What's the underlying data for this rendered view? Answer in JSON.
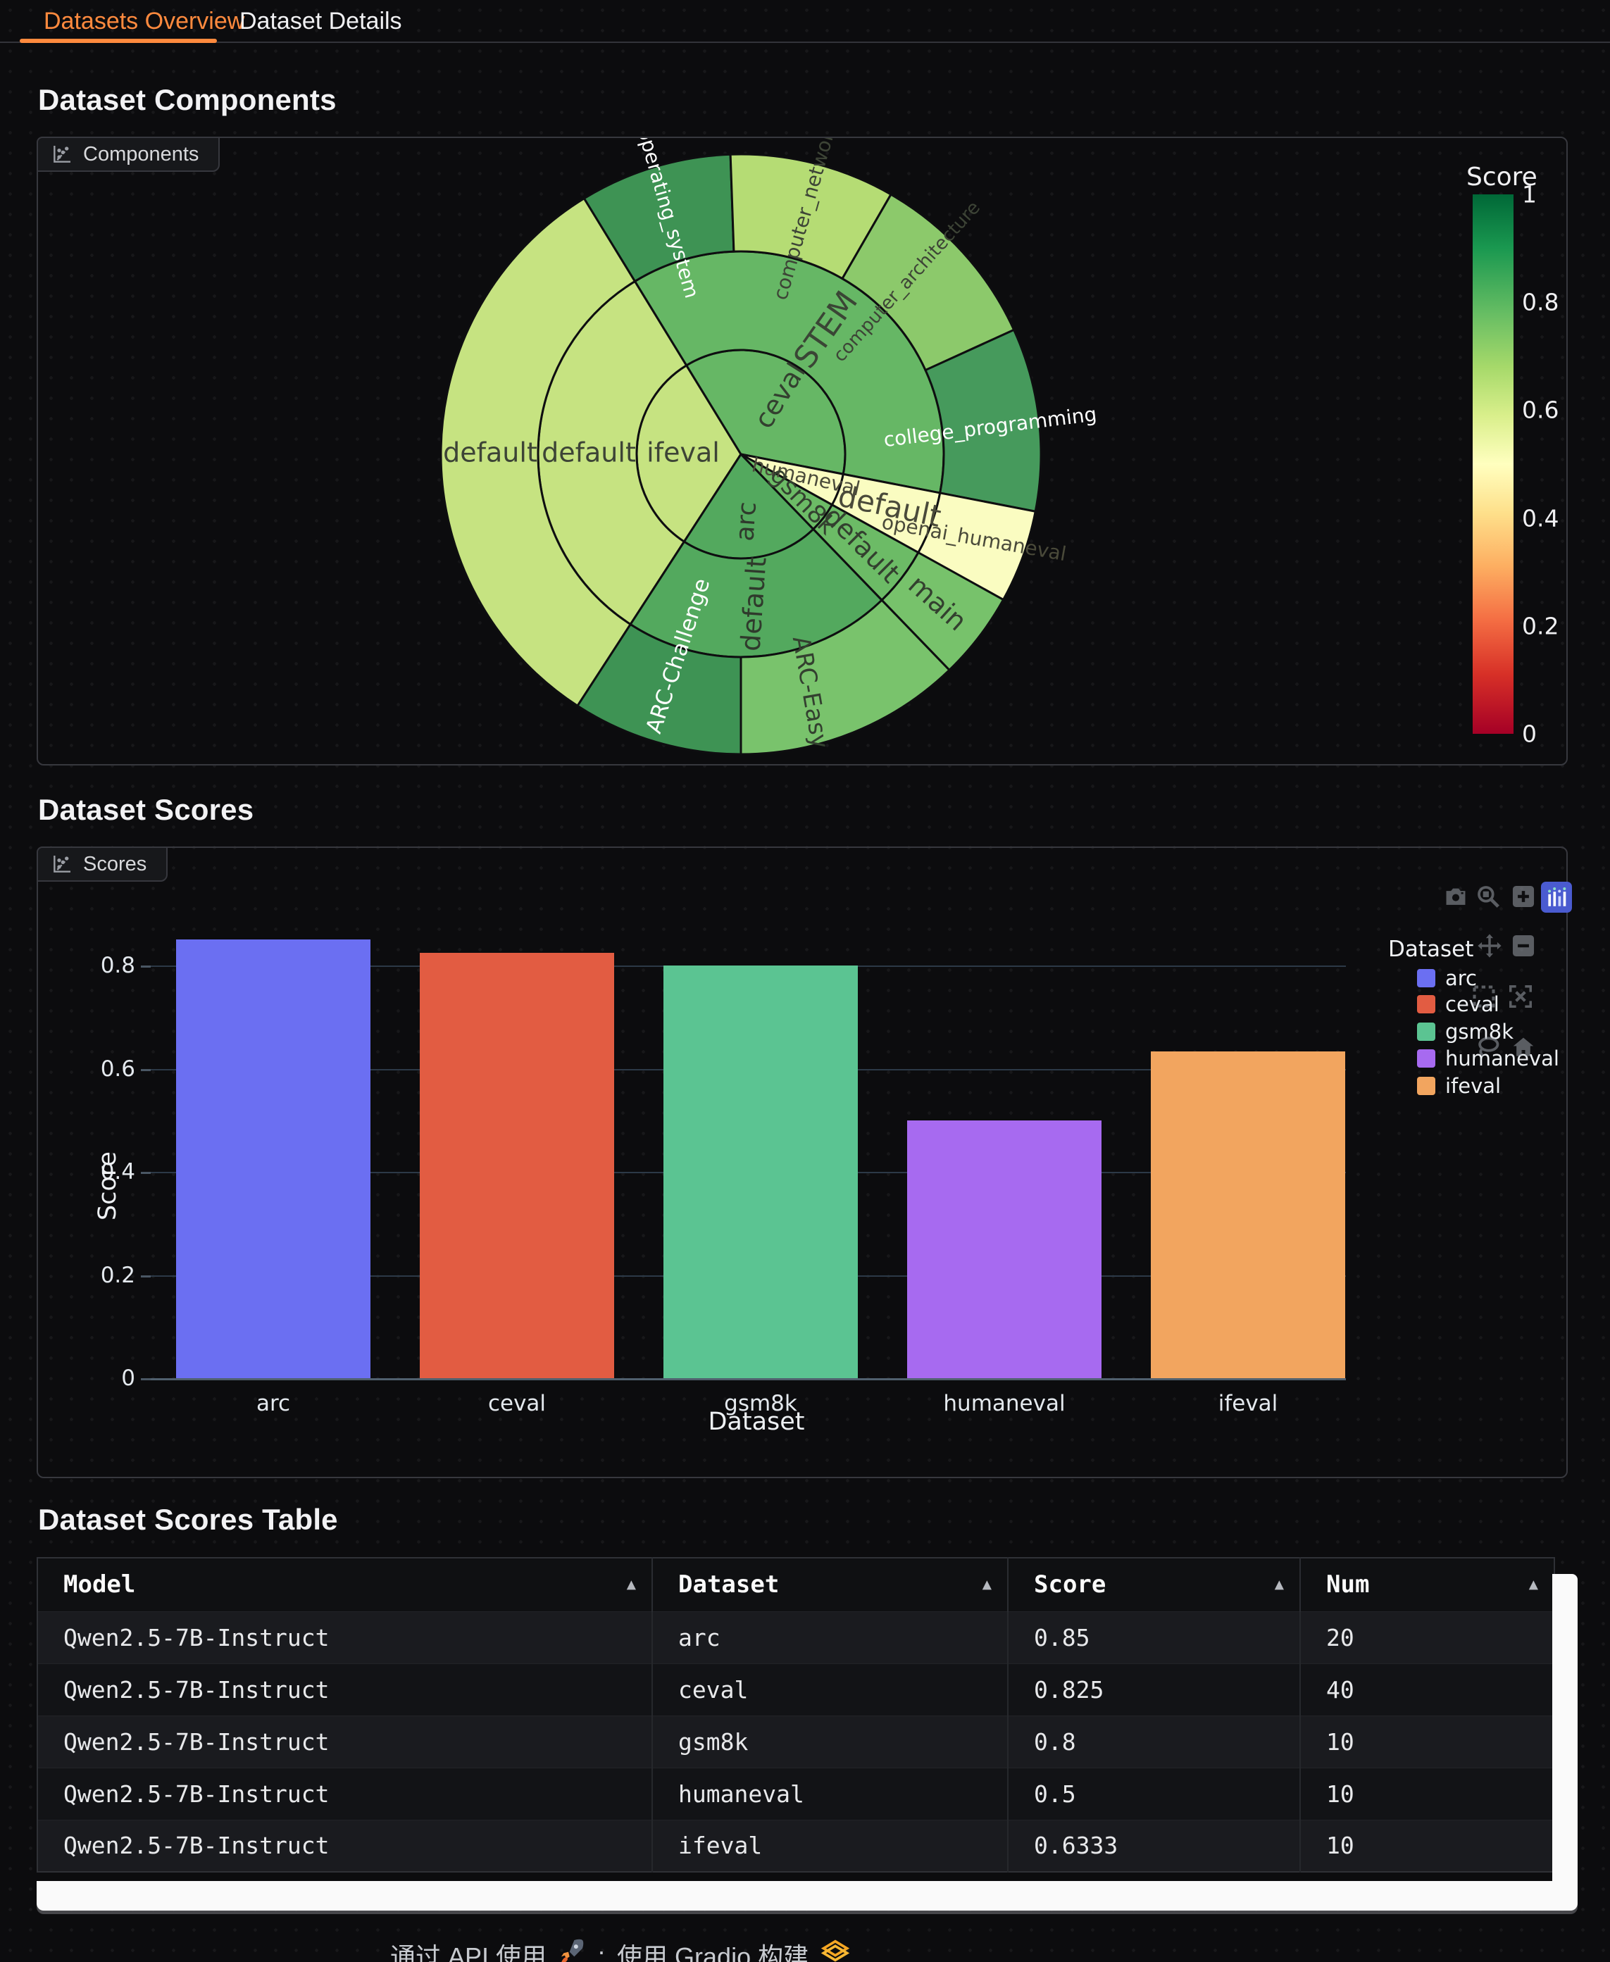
{
  "tabs": [
    {
      "label": "Datasets Overview",
      "active": true
    },
    {
      "label": "Dataset Details",
      "active": false
    }
  ],
  "accent_orange": "#ff8a3e",
  "sections": {
    "components_title": "Dataset Components",
    "components_label": "Components",
    "scores_title": "Dataset Scores",
    "scores_label": "Scores",
    "table_title": "Dataset Scores Table"
  },
  "chart_data": [
    {
      "type": "sunburst",
      "title": "Dataset Components",
      "colorbar": {
        "title": "Score",
        "ticks": [
          1,
          0.8,
          0.6,
          0.4,
          0.2,
          0
        ],
        "range": [
          0,
          1
        ],
        "colorscale": "RdYlGn"
      },
      "dataset_nums": {
        "ifeval": 10,
        "ceval": 40,
        "humaneval": 10,
        "gsm8k": 10,
        "arc": 20
      },
      "segments": [
        {
          "path": "ifeval",
          "label": "ifeval",
          "ring": 1,
          "a0": 213,
          "a1": 328.5,
          "score": 0.6333,
          "color": "#c6e381",
          "tc": "#3d4436",
          "lb": 270,
          "lr": 82,
          "rot": 0,
          "fs": 38
        },
        {
          "path": "ifeval/default",
          "label": "default",
          "ring": 2,
          "a0": 213,
          "a1": 328.5,
          "score": 0.6333,
          "color": "#c6e381",
          "tc": "#3d4436",
          "lb": 270,
          "lr": 216,
          "rot": 0,
          "fs": 38
        },
        {
          "path": "ifeval/default/default",
          "label": "default",
          "ring": 3,
          "a0": 213,
          "a1": 328.5,
          "score": 0.6333,
          "color": "#c6e381",
          "tc": "#3d4436",
          "lb": 270,
          "lr": 356,
          "rot": 0,
          "fs": 38
        },
        {
          "path": "ceval",
          "label": "ceval",
          "ring": 1,
          "a0": 328.5,
          "a1": 461,
          "score": 0.825,
          "color": "#66b765",
          "tc": "#33402f",
          "lb": 395,
          "lr": 100,
          "rot": -58,
          "fs": 38
        },
        {
          "path": "ceval/STEM",
          "label": "STEM",
          "ring": 2,
          "a0": 328.5,
          "a1": 461,
          "score": 0.825,
          "color": "#66b765",
          "tc": "#3a4535",
          "lb": 395,
          "lr": 214,
          "rot": -55,
          "fs": 44
        },
        {
          "path": "ceval/STEM/operating_system",
          "label": "operating_system",
          "ring": 3,
          "a0": 328.5,
          "a1": 358,
          "score": 0.9,
          "color": "#3e9354",
          "tc": "#ffffff",
          "lb": 343,
          "lr": 358,
          "rot": 74,
          "fs": 28
        },
        {
          "path": "ceval/STEM/computer_network",
          "label": "computer_network",
          "ring": 3,
          "a0": 358,
          "a1": 390,
          "score": 0.7,
          "color": "#b5dc74",
          "tc": "#3d4436",
          "lb": 375,
          "lr": 358,
          "rot": -74,
          "fs": 28
        },
        {
          "path": "ceval/STEM/computer_architecture",
          "label": "computer_architecture",
          "ring": 3,
          "a0": 390,
          "a1": 425.5,
          "score": 0.75,
          "color": "#8cc96b",
          "tc": "#3d4436",
          "lb": 404,
          "lr": 340,
          "rot": -48,
          "fs": 26
        },
        {
          "path": "ceval/STEM/college_programming",
          "label": "college_programming",
          "ring": 3,
          "a0": 425.5,
          "a1": 461,
          "score": 0.875,
          "color": "#469a5c",
          "tc": "#ffffff",
          "lb": 444,
          "lr": 356,
          "rot": -7,
          "fs": 28
        },
        {
          "path": "humaneval",
          "label": "humaneval",
          "ring": 1,
          "a0": 461,
          "a1": 479,
          "score": 0.5,
          "color": "#fafcc1",
          "tc": "#4a4a3a",
          "lb": 470,
          "lr": 98,
          "rot": 13,
          "fs": 28
        },
        {
          "path": "humaneval/default",
          "label": "default",
          "ring": 2,
          "a0": 461,
          "a1": 479,
          "score": 0.5,
          "color": "#fafcc1",
          "tc": "#4a4a3a",
          "lb": 470,
          "lr": 224,
          "rot": 12,
          "fs": 42
        },
        {
          "path": "humaneval/default/openai_humaneval",
          "label": "openai_humaneval",
          "ring": 3,
          "a0": 461,
          "a1": 479,
          "score": 0.5,
          "color": "#fafcc1",
          "tc": "#4a4a3a",
          "lb": 470,
          "lr": 352,
          "rot": 10,
          "fs": 28
        },
        {
          "path": "gsm8k",
          "label": "gsm8k",
          "ring": 1,
          "a0": 479,
          "a1": 496,
          "score": 0.8,
          "color": "#6cbb66",
          "tc": "#33402f",
          "lb": 487.5,
          "lr": 110,
          "rot": 46,
          "fs": 35
        },
        {
          "path": "gsm8k/default",
          "label": "default",
          "ring": 2,
          "a0": 479,
          "a1": 496,
          "score": 0.8,
          "color": "#6cbb66",
          "tc": "#33402f",
          "lb": 487.5,
          "lr": 214,
          "rot": 45,
          "fs": 38
        },
        {
          "path": "gsm8k/default/main",
          "label": "main",
          "ring": 3,
          "a0": 479,
          "a1": 496,
          "score": 0.8,
          "color": "#77c26b",
          "tc": "#33402f",
          "lb": 487.5,
          "lr": 350,
          "rot": 42,
          "fs": 38
        },
        {
          "path": "arc",
          "label": "arc",
          "ring": 1,
          "a0": 496,
          "a1": 573,
          "score": 0.85,
          "color": "#53a95e",
          "tc": "#2f3a2c",
          "lb": 534.5,
          "lr": 96,
          "rot": -86,
          "fs": 36
        },
        {
          "path": "arc/default",
          "label": "default",
          "ring": 2,
          "a0": 496,
          "a1": 573,
          "score": 0.85,
          "color": "#53a95e",
          "tc": "#2f3a2c",
          "lb": 534.5,
          "lr": 214,
          "rot": -86,
          "fs": 38
        },
        {
          "path": "arc/default/ARC-Easy",
          "label": "ARC-Easy",
          "ring": 3,
          "a0": 496,
          "a1": 540,
          "score": 0.8,
          "color": "#79c36c",
          "tc": "#33402f",
          "lb": 524,
          "lr": 352,
          "rot": 80,
          "fs": 34
        },
        {
          "path": "arc/default/ARC-Challenge",
          "label": "ARC-Challenge",
          "ring": 3,
          "a0": 540,
          "a1": 573,
          "score": 0.9,
          "color": "#3e9354",
          "tc": "#ffffff",
          "lb": 557,
          "lr": 300,
          "rot": -72,
          "fs": 31
        }
      ]
    },
    {
      "type": "bar",
      "categories": [
        "arc",
        "ceval",
        "gsm8k",
        "humaneval",
        "ifeval"
      ],
      "values": [
        0.85,
        0.825,
        0.8,
        0.5,
        0.6333
      ],
      "colors": [
        "#6b6ff2",
        "#e25c42",
        "#5bc492",
        "#a76af0",
        "#f2a55f"
      ],
      "xlabel": "Dataset",
      "ylabel": "Score",
      "yticks": [
        0,
        0.2,
        0.4,
        0.6,
        0.8
      ],
      "ylim": [
        0,
        0.8947
      ],
      "grid": true,
      "legend": {
        "title": "Dataset",
        "entries": [
          "arc",
          "ceval",
          "gsm8k",
          "humaneval",
          "ifeval"
        ],
        "position": "top-right"
      }
    }
  ],
  "modebar_icons": [
    "camera",
    "zoom",
    "zoom-in",
    "plotly-logo",
    "pan",
    "zoom-out",
    "box-select",
    "autoscale",
    "lasso",
    "home"
  ],
  "table": {
    "sort_icon": "▲",
    "headers": [
      "Model",
      "Dataset",
      "Score",
      "Num"
    ],
    "rows": [
      [
        "Qwen2.5-7B-Instruct",
        "arc",
        "0.85",
        "20"
      ],
      [
        "Qwen2.5-7B-Instruct",
        "ceval",
        "0.825",
        "40"
      ],
      [
        "Qwen2.5-7B-Instruct",
        "gsm8k",
        "0.8",
        "10"
      ],
      [
        "Qwen2.5-7B-Instruct",
        "humaneval",
        "0.5",
        "10"
      ],
      [
        "Qwen2.5-7B-Instruct",
        "ifeval",
        "0.6333",
        "10"
      ]
    ]
  },
  "footer": {
    "api": "通过 API 使用",
    "rocket": "rocket-icon",
    "sep": "·",
    "gradio": "使用 Gradio 构建",
    "logo": "gradio-logo"
  }
}
